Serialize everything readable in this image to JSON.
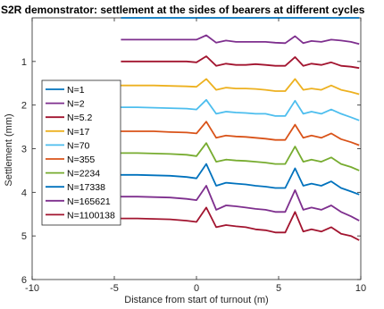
{
  "chart_data": {
    "type": "line",
    "title": "S2R demonstrator: settlement at the sides of bearers at different cycles",
    "xlabel": "Distance from start of turnout (m)",
    "ylabel": "Settlement (mm)",
    "xlim": [
      -10,
      10
    ],
    "ylim": [
      6,
      0
    ],
    "y_reversed": true,
    "xticks": [
      "-10",
      "-5",
      "0",
      "5",
      "10"
    ],
    "yticks": [
      "1",
      "2",
      "3",
      "4",
      "5",
      "6"
    ],
    "grid": false,
    "legend_position": "left",
    "x": [
      -4.6,
      -3.6,
      -2.6,
      -1.6,
      -0.6,
      0,
      0.6,
      1.2,
      1.8,
      2.4,
      3.0,
      3.6,
      4.2,
      4.8,
      5.4,
      6.0,
      6.5,
      7.0,
      7.6,
      8.2,
      8.8,
      9.4,
      9.9
    ],
    "series": [
      {
        "name": "N=1",
        "color": "#0072bd",
        "values": [
          0,
          0,
          0,
          0,
          0,
          0,
          0,
          0,
          0,
          0,
          0,
          0,
          0,
          0,
          0,
          0,
          0,
          0,
          0,
          0,
          0,
          0,
          0
        ]
      },
      {
        "name": "N=2",
        "color": "#7e2f8e",
        "values": [
          0.5,
          0.5,
          0.5,
          0.5,
          0.5,
          0.5,
          0.4,
          0.57,
          0.52,
          0.55,
          0.55,
          0.55,
          0.55,
          0.57,
          0.58,
          0.42,
          0.58,
          0.53,
          0.55,
          0.5,
          0.52,
          0.55,
          0.6
        ]
      },
      {
        "name": "N=5.2",
        "color": "#a2142f",
        "values": [
          1.0,
          1.0,
          1.0,
          1.0,
          1.0,
          1.02,
          0.88,
          1.1,
          1.05,
          1.08,
          1.08,
          1.06,
          1.08,
          1.1,
          1.1,
          0.9,
          1.1,
          1.05,
          1.08,
          1.02,
          1.1,
          1.12,
          1.15
        ]
      },
      {
        "name": "N=17",
        "color": "#edb120",
        "values": [
          1.55,
          1.55,
          1.55,
          1.56,
          1.57,
          1.58,
          1.4,
          1.65,
          1.6,
          1.62,
          1.62,
          1.63,
          1.65,
          1.68,
          1.68,
          1.4,
          1.65,
          1.62,
          1.65,
          1.55,
          1.65,
          1.7,
          1.75
        ]
      },
      {
        "name": "N=70",
        "color": "#4dbeee",
        "values": [
          2.05,
          2.05,
          2.06,
          2.07,
          2.08,
          2.1,
          1.88,
          2.2,
          2.15,
          2.17,
          2.18,
          2.2,
          2.2,
          2.25,
          2.25,
          1.9,
          2.2,
          2.15,
          2.2,
          2.1,
          2.2,
          2.28,
          2.35
        ]
      },
      {
        "name": "N=355",
        "color": "#d95319",
        "values": [
          2.6,
          2.6,
          2.6,
          2.62,
          2.63,
          2.65,
          2.38,
          2.75,
          2.7,
          2.72,
          2.73,
          2.75,
          2.77,
          2.8,
          2.8,
          2.45,
          2.75,
          2.7,
          2.75,
          2.65,
          2.78,
          2.85,
          2.92
        ]
      },
      {
        "name": "N=2234",
        "color": "#77ac30",
        "values": [
          3.1,
          3.1,
          3.11,
          3.12,
          3.14,
          3.17,
          2.87,
          3.3,
          3.25,
          3.27,
          3.28,
          3.3,
          3.32,
          3.35,
          3.35,
          2.95,
          3.3,
          3.25,
          3.3,
          3.2,
          3.35,
          3.42,
          3.5
        ]
      },
      {
        "name": "N=17338",
        "color": "#0072bd",
        "values": [
          3.6,
          3.6,
          3.61,
          3.62,
          3.65,
          3.68,
          3.35,
          3.85,
          3.78,
          3.8,
          3.82,
          3.85,
          3.87,
          3.9,
          3.9,
          3.45,
          3.85,
          3.8,
          3.85,
          3.75,
          3.9,
          3.98,
          4.05
        ]
      },
      {
        "name": "N=165621",
        "color": "#7e2f8e",
        "values": [
          4.1,
          4.1,
          4.11,
          4.12,
          4.15,
          4.18,
          3.85,
          4.4,
          4.3,
          4.32,
          4.35,
          4.38,
          4.4,
          4.45,
          4.45,
          3.95,
          4.4,
          4.35,
          4.4,
          4.3,
          4.45,
          4.55,
          4.65
        ]
      },
      {
        "name": "N=1100138",
        "color": "#a2142f",
        "values": [
          4.6,
          4.6,
          4.61,
          4.62,
          4.65,
          4.68,
          4.35,
          4.8,
          4.75,
          4.78,
          4.8,
          4.85,
          4.87,
          4.92,
          4.92,
          4.45,
          4.9,
          4.85,
          4.9,
          4.8,
          4.95,
          5.0,
          5.1
        ]
      }
    ]
  }
}
